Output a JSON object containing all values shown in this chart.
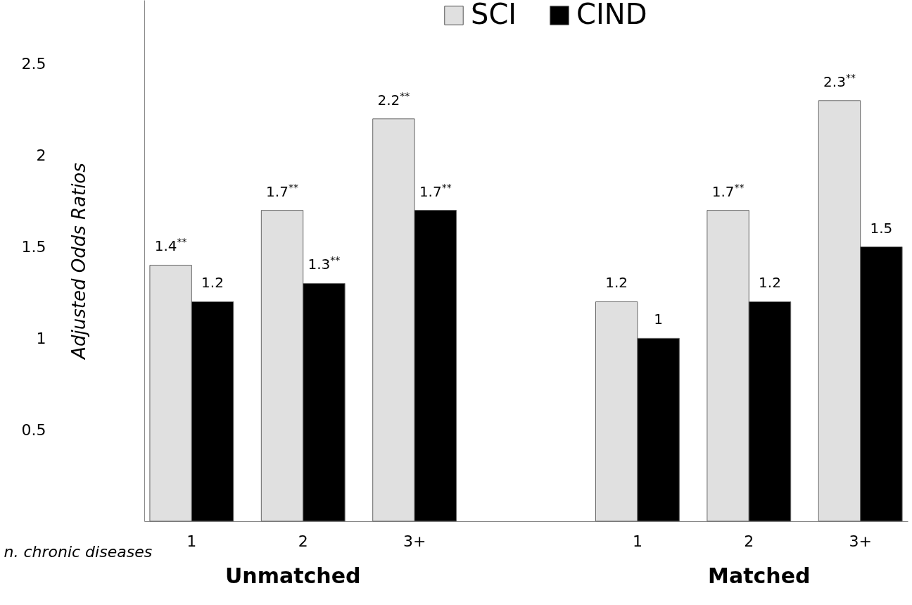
{
  "chart_data": {
    "type": "bar",
    "ylabel": "Adjusted Odds Ratios",
    "xlabel": "n. chronic diseases",
    "categories": [
      "1",
      "2",
      "3+",
      null,
      "1",
      "2",
      "3+"
    ],
    "series": [
      {
        "name": "SCI",
        "color": "#e0e0e0",
        "values": [
          1.4,
          1.7,
          2.2,
          null,
          1.2,
          1.7,
          2.3
        ],
        "value_labels": [
          "1.4$^{**}$",
          "1.7$^{**}$",
          "2.2$^{**}$",
          null,
          "1.2",
          "1.7$^{**}$",
          "2.3$^{**}$"
        ]
      },
      {
        "name": "CIND",
        "color": "#000000",
        "values": [
          1.2,
          1.3,
          1.7,
          null,
          1.0,
          1.2,
          1.5
        ],
        "value_labels": [
          "1.2",
          "1.3$^{**}$",
          "1.7$^{**}$",
          null,
          "1",
          "1.2",
          "1.5"
        ]
      }
    ],
    "ylim": [
      0,
      2.85
    ],
    "yticks": [
      0.5,
      1,
      1.5,
      2,
      2.5
    ],
    "grid": false,
    "legend": "top",
    "annotations": [
      "Unmatched",
      "Matched"
    ]
  }
}
